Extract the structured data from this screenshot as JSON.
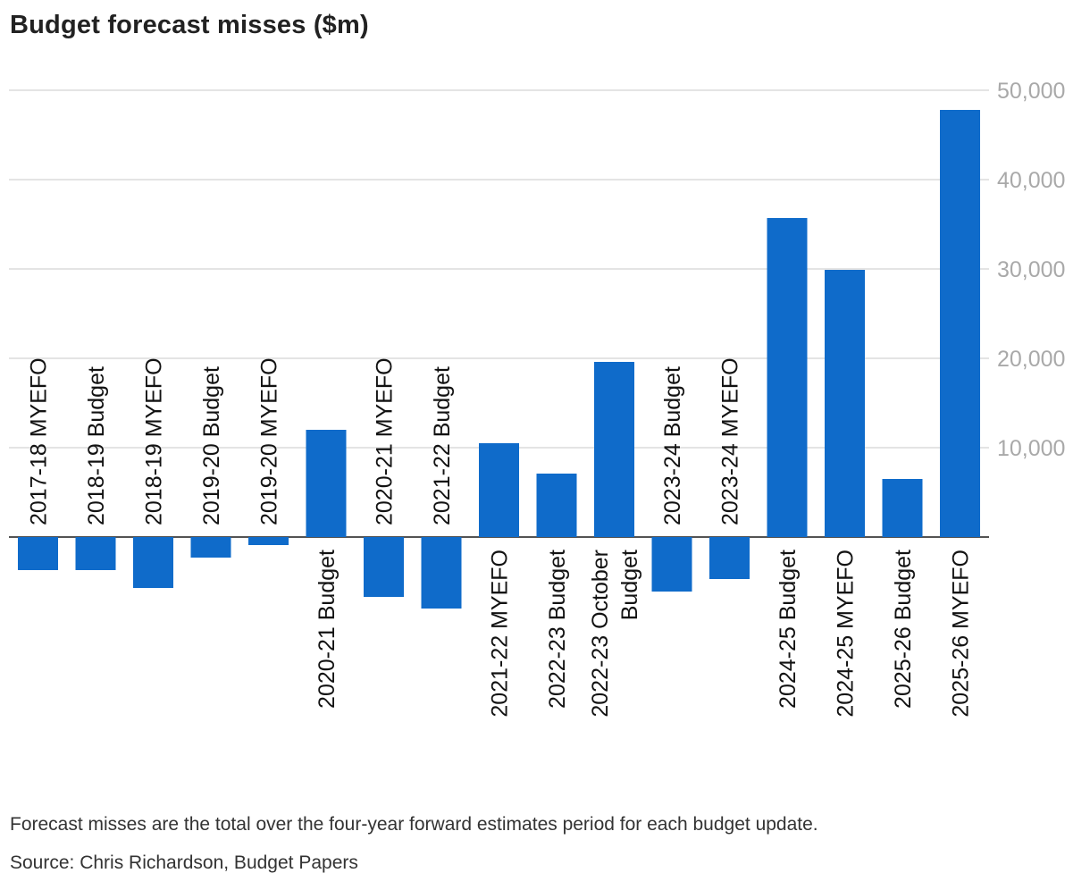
{
  "chart_data": {
    "type": "bar",
    "title": "Budget forecast misses ($m)",
    "categories": [
      "2017-18 MYEFO",
      "2018-19 Budget",
      "2018-19 MYEFO",
      "2019-20 Budget",
      "2019-20 MYEFO",
      "2020-21 Budget",
      "2020-21 MYEFO",
      "2021-22 Budget",
      "2021-22 MYEFO",
      "2022-23 Budget",
      "2022-23 October Budget",
      "2023-24 Budget",
      "2023-24 MYEFO",
      "2024-25 Budget",
      "2024-25 MYEFO",
      "2025-26 Budget",
      "2025-26 MYEFO"
    ],
    "values": [
      -3700,
      -3700,
      -5700,
      -2300,
      -900,
      12000,
      -6700,
      -8000,
      10500,
      7100,
      19600,
      -6100,
      -4700,
      35700,
      29900,
      6500,
      47800
    ],
    "yticks": [
      10000,
      20000,
      30000,
      40000,
      50000
    ],
    "ytick_labels": [
      "10,000",
      "20,000",
      "30,000",
      "40,000",
      "50,000"
    ],
    "ylim": [
      -9000,
      50000
    ],
    "xlabel": "",
    "ylabel": "",
    "grid": true,
    "bar_color": "#0f6bca"
  },
  "footer": {
    "note": "Forecast misses are the total over the four-year forward estimates period for each budget update.",
    "source": "Source: Chris Richardson, Budget Papers"
  }
}
